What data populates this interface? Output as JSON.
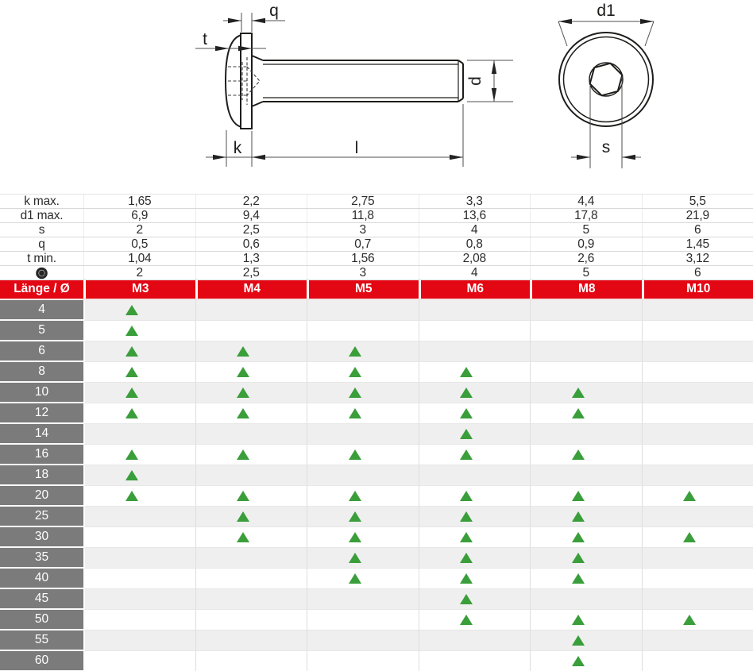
{
  "colors": {
    "header_red": "#e30613",
    "length_column_gray": "#7b7b7b",
    "alt_row_gray": "#efefef",
    "triangle_green": "#3a9e3a"
  },
  "drawing": {
    "description": "technical drawing of flanged button head socket screw, side view and front view",
    "labels": {
      "q": "q",
      "t": "t",
      "k": "k",
      "l": "l",
      "d": "d",
      "d1": "d1",
      "s": "s"
    }
  },
  "spec_table": {
    "rows": [
      {
        "label": "k max.",
        "values": [
          "1,65",
          "2,2",
          "2,75",
          "3,3",
          "4,4",
          "5,5"
        ]
      },
      {
        "label": "d1 max.",
        "values": [
          "6,9",
          "9,4",
          "11,8",
          "13,6",
          "17,8",
          "21,9"
        ]
      },
      {
        "label": "s",
        "values": [
          "2",
          "2,5",
          "3",
          "4",
          "5",
          "6"
        ]
      },
      {
        "label": "q",
        "values": [
          "0,5",
          "0,6",
          "0,7",
          "0,8",
          "0,9",
          "1,45"
        ]
      },
      {
        "label": "t min.",
        "values": [
          "1,04",
          "1,3",
          "1,56",
          "2,08",
          "2,6",
          "3,12"
        ]
      },
      {
        "label": "",
        "icon": "hex-socket-icon",
        "values": [
          "2",
          "2,5",
          "3",
          "4",
          "5",
          "6"
        ]
      }
    ]
  },
  "availability_table": {
    "corner_label": "Länge / Ø",
    "columns": [
      "M3",
      "M4",
      "M5",
      "M6",
      "M8",
      "M10"
    ],
    "marker": "triangle-up",
    "rows": [
      {
        "length": "4",
        "available": [
          1,
          0,
          0,
          0,
          0,
          0
        ]
      },
      {
        "length": "5",
        "available": [
          1,
          0,
          0,
          0,
          0,
          0
        ]
      },
      {
        "length": "6",
        "available": [
          1,
          1,
          1,
          0,
          0,
          0
        ]
      },
      {
        "length": "8",
        "available": [
          1,
          1,
          1,
          1,
          0,
          0
        ]
      },
      {
        "length": "10",
        "available": [
          1,
          1,
          1,
          1,
          1,
          0
        ]
      },
      {
        "length": "12",
        "available": [
          1,
          1,
          1,
          1,
          1,
          0
        ]
      },
      {
        "length": "14",
        "available": [
          0,
          0,
          0,
          1,
          0,
          0
        ]
      },
      {
        "length": "16",
        "available": [
          1,
          1,
          1,
          1,
          1,
          0
        ]
      },
      {
        "length": "18",
        "available": [
          1,
          0,
          0,
          0,
          0,
          0
        ]
      },
      {
        "length": "20",
        "available": [
          1,
          1,
          1,
          1,
          1,
          1
        ]
      },
      {
        "length": "25",
        "available": [
          0,
          1,
          1,
          1,
          1,
          0
        ]
      },
      {
        "length": "30",
        "available": [
          0,
          1,
          1,
          1,
          1,
          1
        ]
      },
      {
        "length": "35",
        "available": [
          0,
          0,
          1,
          1,
          1,
          0
        ]
      },
      {
        "length": "40",
        "available": [
          0,
          0,
          1,
          1,
          1,
          0
        ]
      },
      {
        "length": "45",
        "available": [
          0,
          0,
          0,
          1,
          0,
          0
        ]
      },
      {
        "length": "50",
        "available": [
          0,
          0,
          0,
          1,
          1,
          1
        ]
      },
      {
        "length": "55",
        "available": [
          0,
          0,
          0,
          0,
          1,
          0
        ]
      },
      {
        "length": "60",
        "available": [
          0,
          0,
          0,
          0,
          1,
          0
        ]
      }
    ]
  }
}
